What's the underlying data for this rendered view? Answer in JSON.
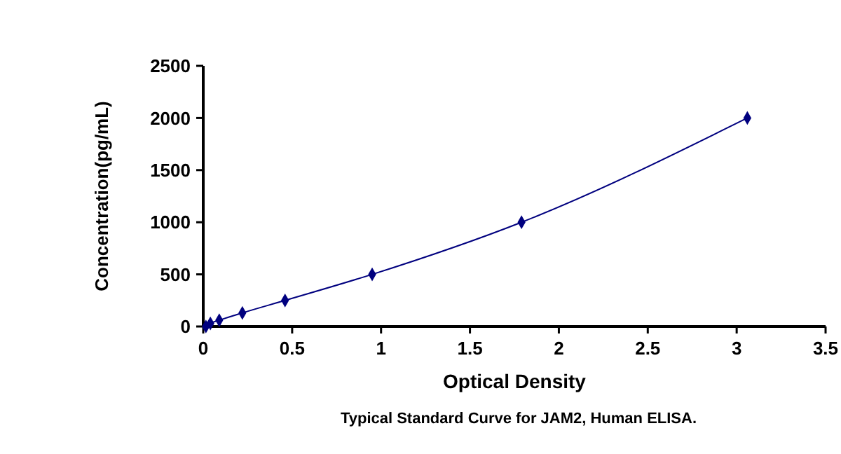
{
  "chart_data": {
    "type": "line",
    "xlabel": "Optical Density",
    "ylabel": "Concentration(pg/mL)",
    "annotations": [
      "Typical Standard Curve for JAM2, Human ELISA."
    ],
    "x": [
      0.015,
      0.04,
      0.09,
      0.22,
      0.46,
      0.95,
      1.79,
      3.06
    ],
    "series": [
      {
        "color": "#00007f",
        "values": [
          0,
          30,
          60,
          130,
          250,
          500,
          1000,
          2000
        ]
      }
    ],
    "xlim": [
      0,
      3.5
    ],
    "xticks": [
      0,
      0.5,
      1,
      1.5,
      2,
      2.5,
      3,
      3.5
    ],
    "ylim": [
      0,
      2500
    ],
    "yticks": [
      0,
      500,
      1000,
      1500,
      2000,
      2500
    ],
    "marker": "diamond",
    "line_style": "solid"
  }
}
